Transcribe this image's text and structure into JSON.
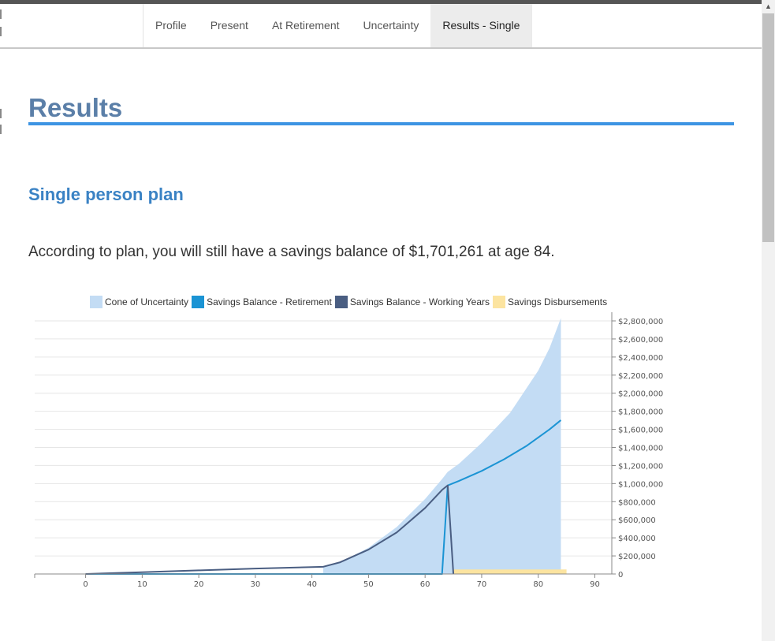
{
  "nav": {
    "tabs": [
      {
        "label": "Profile",
        "active": false
      },
      {
        "label": "Present",
        "active": false
      },
      {
        "label": "At Retirement",
        "active": false
      },
      {
        "label": "Uncertainty",
        "active": false
      },
      {
        "label": "Results - Single",
        "active": true
      }
    ]
  },
  "page": {
    "title": "Results",
    "subtitle": "Single person plan",
    "summary": "According to plan, you will still have a savings balance of $1,701,261 at age 84."
  },
  "colors": {
    "cone": "#c3dcf4",
    "retirement": "#1b94d4",
    "working": "#4a5e82",
    "disbursements": "#fce4a0",
    "title": "#5b7fa8",
    "title_rule": "#3d94e3"
  },
  "chart_data": {
    "type": "area",
    "legend": [
      {
        "name": "Cone of Uncertainty",
        "color": "#c3dcf4"
      },
      {
        "name": "Savings Balance - Retirement",
        "color": "#1b94d4"
      },
      {
        "name": "Savings Balance - Working Years",
        "color": "#4a5e82"
      },
      {
        "name": "Savings Disbursements",
        "color": "#fce4a0"
      }
    ],
    "legend_position": "top",
    "xlim": [
      -9,
      93
    ],
    "ylim": [
      0,
      2800000
    ],
    "x_ticks": [
      0,
      10,
      20,
      30,
      40,
      50,
      60,
      70,
      80,
      90
    ],
    "y_ticks": [
      0,
      200000,
      400000,
      600000,
      800000,
      1000000,
      1200000,
      1400000,
      1600000,
      1800000,
      2000000,
      2200000,
      2400000,
      2600000,
      2800000
    ],
    "y_tick_labels": [
      "0",
      "$200,000",
      "$400,000",
      "$600,000",
      "$800,000",
      "$1,000,000",
      "$1,200,000",
      "$1,400,000",
      "$1,600,000",
      "$1,800,000",
      "$2,000,000",
      "$2,200,000",
      "$2,400,000",
      "$2,600,000",
      "$2,800,000"
    ],
    "grid": true,
    "y_axis_side": "right",
    "series": [
      {
        "name": "Cone of Uncertainty",
        "kind": "band",
        "x": [
          42,
          45,
          50,
          55,
          60,
          63,
          64,
          66,
          70,
          75,
          80,
          82,
          84
        ],
        "upper": [
          80000,
          130000,
          290000,
          520000,
          830000,
          1050000,
          1130000,
          1220000,
          1450000,
          1780000,
          2250000,
          2500000,
          2830000
        ],
        "lower": [
          0,
          0,
          0,
          0,
          0,
          0,
          0,
          0,
          0,
          0,
          0,
          0,
          0
        ]
      },
      {
        "name": "Savings Balance - Working Years",
        "kind": "line",
        "x": [
          0,
          10,
          20,
          30,
          42,
          45,
          50,
          55,
          60,
          63,
          64,
          65
        ],
        "y": [
          0,
          20000,
          40000,
          60000,
          80000,
          130000,
          270000,
          460000,
          730000,
          930000,
          980000,
          0
        ]
      },
      {
        "name": "Savings Balance - Retirement",
        "kind": "line",
        "x": [
          0,
          63,
          64,
          66,
          70,
          74,
          78,
          82,
          84
        ],
        "y": [
          0,
          0,
          980000,
          1030000,
          1140000,
          1270000,
          1420000,
          1600000,
          1701261
        ]
      },
      {
        "name": "Savings Disbursements",
        "kind": "bar",
        "x": [
          65,
          85
        ],
        "y": 50000
      }
    ]
  }
}
